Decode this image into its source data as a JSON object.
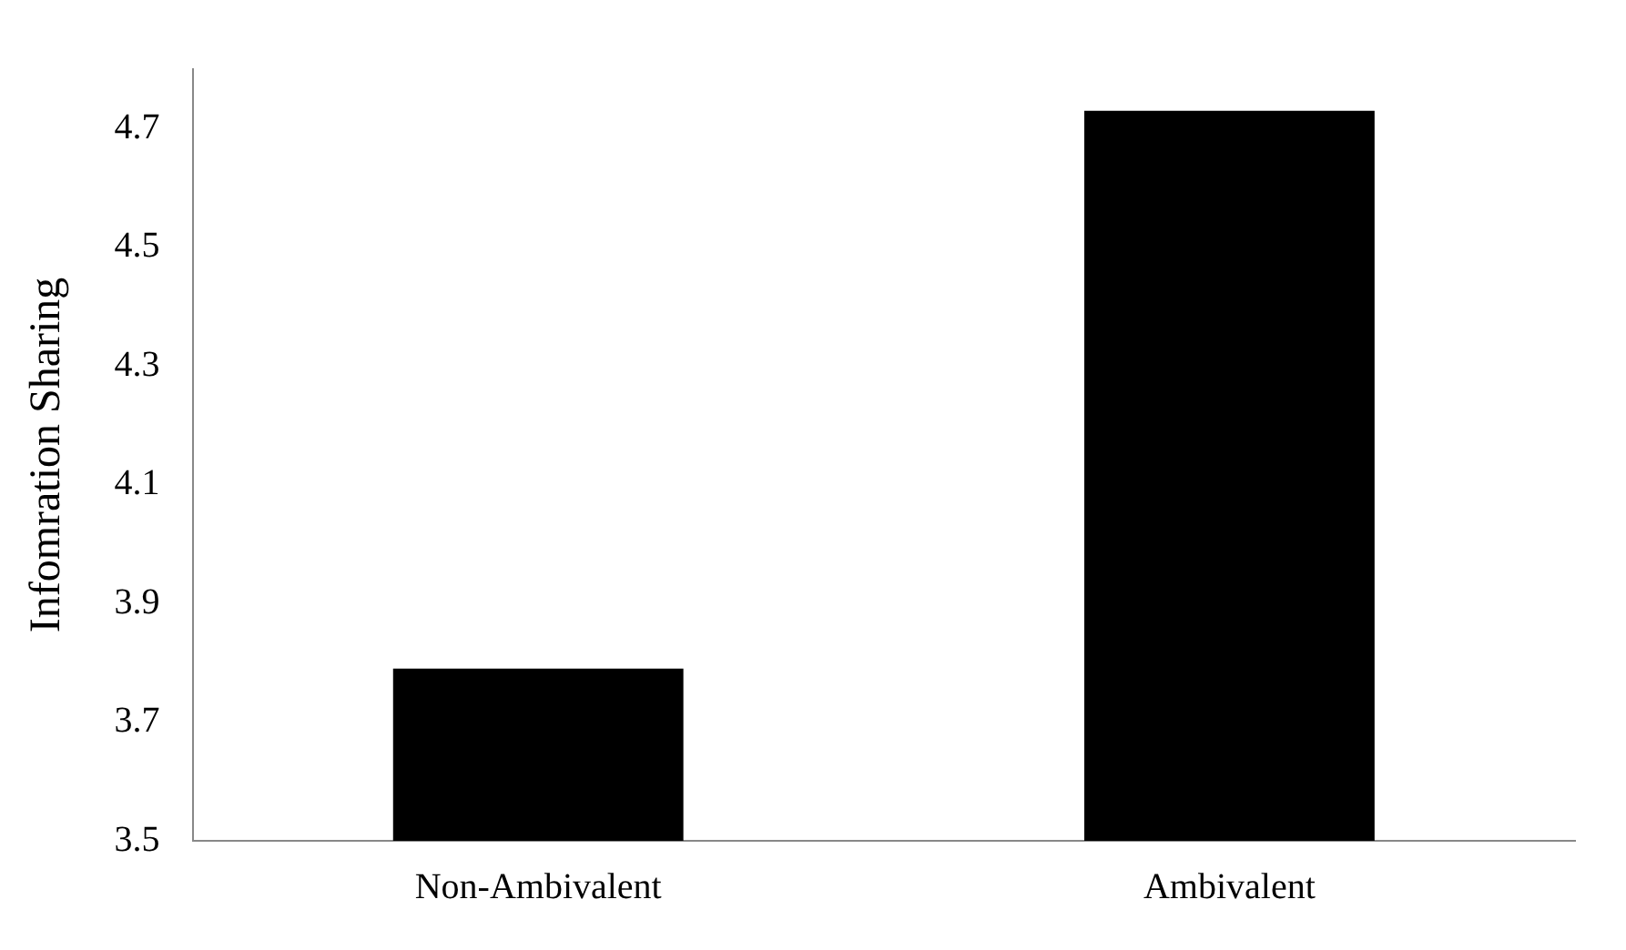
{
  "chart_data": {
    "type": "bar",
    "ylabel": "Infomration Sharing",
    "categories": [
      "Non-Ambivalent",
      "Ambivalent"
    ],
    "values": [
      3.79,
      4.73
    ],
    "color": "#000000",
    "ylim": [
      3.5,
      4.8
    ],
    "yticks": [
      3.5,
      3.7,
      3.9,
      4.1,
      4.3,
      4.5,
      4.7
    ],
    "grid": false,
    "legend": false
  }
}
